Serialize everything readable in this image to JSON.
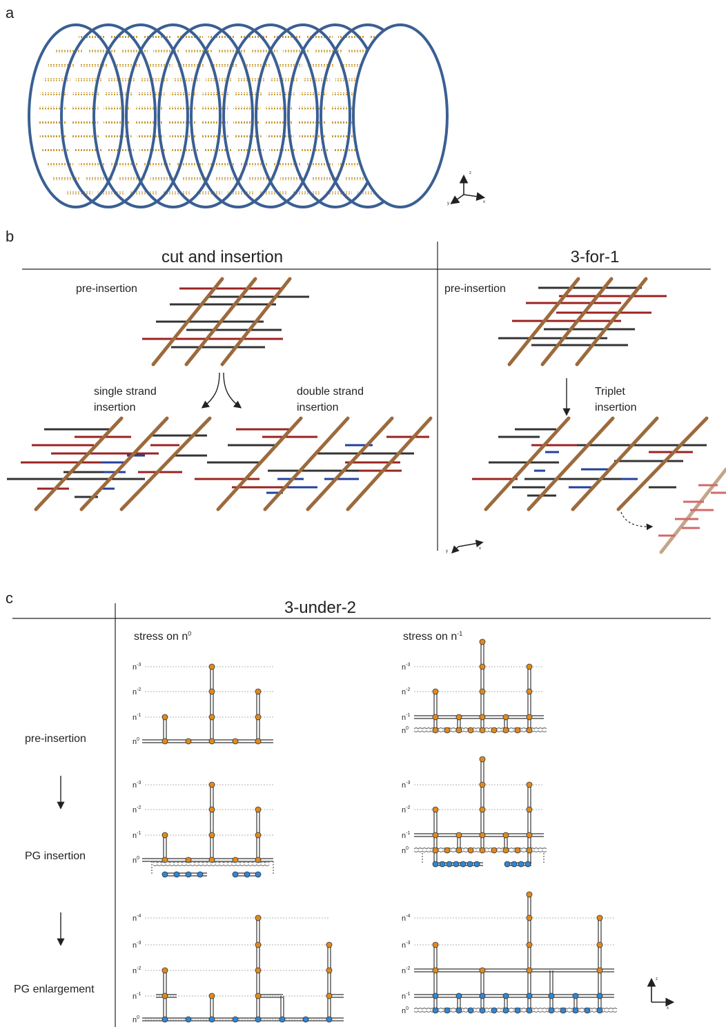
{
  "panels": {
    "a": "a",
    "b": "b",
    "c": "c"
  },
  "b": {
    "left_title": "cut and insertion",
    "right_title": "3-for-1",
    "pre_left": "pre-insertion",
    "pre_right": "pre-insertion",
    "single": [
      "single strand",
      "insertion"
    ],
    "double": [
      "double strand",
      "insertion"
    ],
    "triplet": [
      "Triplet",
      "insertion"
    ]
  },
  "c": {
    "title": "3-under-2",
    "col1": "stress on n",
    "col1_sup": "0",
    "col2": "stress on n",
    "col2_sup": "-1",
    "rows": [
      "pre-insertion",
      "PG insertion",
      "PG enlargement"
    ],
    "levels": [
      {
        "base": "n",
        "sup": "0"
      },
      {
        "base": "n",
        "sup": "-1"
      },
      {
        "base": "n",
        "sup": "-2"
      },
      {
        "base": "n",
        "sup": "-3"
      },
      {
        "base": "n",
        "sup": "-4"
      }
    ]
  },
  "axes_labels": {
    "x": "x",
    "y": "y",
    "z": "z"
  },
  "colors": {
    "ring": "#3a5f93",
    "peptide": "#c99a35",
    "glycan": "#9c6a3c",
    "red": "#9b2320",
    "black": "#333333",
    "blue": "#23409a",
    "orange": "#e08a1e",
    "node_blue": "#2f86d3"
  }
}
